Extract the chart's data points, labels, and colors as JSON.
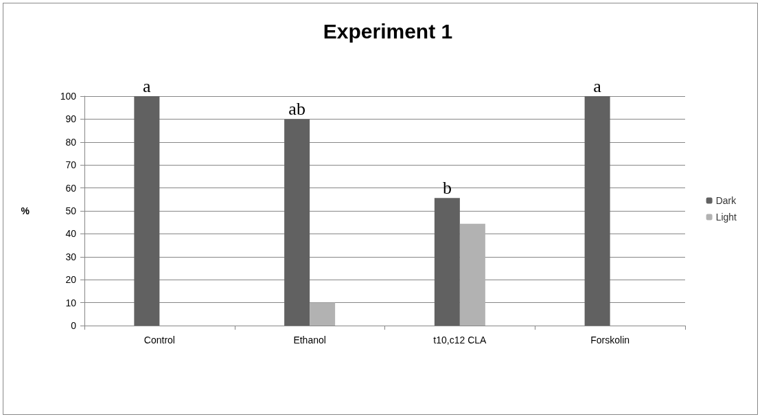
{
  "chart_data": {
    "type": "bar",
    "title": "Experiment 1",
    "ylabel": "%",
    "categories": [
      "Control",
      "Ethanol",
      "t10,c12 CLA",
      "Forskolin"
    ],
    "series": [
      {
        "name": "Dark",
        "color": "#616161",
        "values": [
          100,
          90,
          55.6,
          100
        ]
      },
      {
        "name": "Light",
        "color": "#b2b2b2",
        "values": [
          0,
          10,
          44.4,
          0
        ]
      }
    ],
    "ylim": [
      0,
      100
    ],
    "yticks": [
      0,
      10,
      20,
      30,
      40,
      50,
      60,
      70,
      80,
      90,
      100
    ],
    "grid": "y",
    "legend": "right",
    "annotations": [
      {
        "text": "a",
        "x": "Control",
        "y": 100
      },
      {
        "text": "ab",
        "x": "Ethanol",
        "y": 90
      },
      {
        "text": "b",
        "x": "t10,c12 CLA",
        "y": 55.6
      },
      {
        "text": "a",
        "x": "Forskolin",
        "y": 100
      }
    ]
  }
}
